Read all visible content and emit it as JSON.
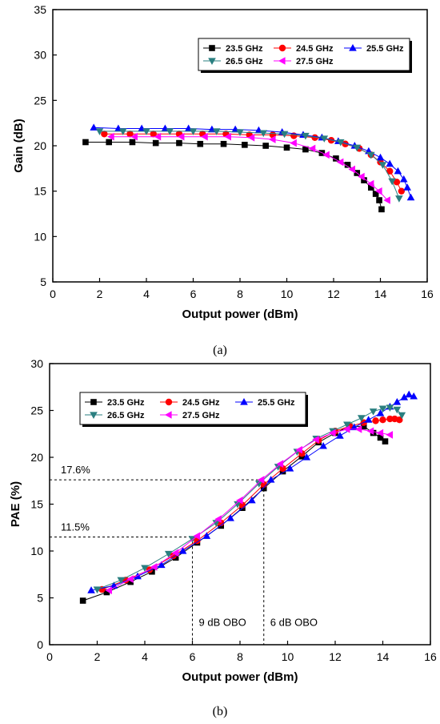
{
  "chart_data": [
    {
      "type": "line",
      "caption": "(a)",
      "xlabel": "Output power (dBm)",
      "ylabel": "Gain (dB)",
      "xlim": [
        0,
        16
      ],
      "ylim": [
        5,
        35
      ],
      "xticks": [
        0,
        2,
        4,
        6,
        8,
        10,
        12,
        14,
        16
      ],
      "yticks": [
        5,
        10,
        15,
        20,
        25,
        30,
        35
      ],
      "legend": "top-right",
      "series": [
        {
          "name": "23.5 GHz",
          "marker": "square",
          "color": "#000000",
          "x": [
            1.4,
            2.4,
            3.4,
            4.4,
            5.4,
            6.3,
            7.3,
            8.2,
            9.1,
            10.0,
            10.8,
            11.5,
            12.1,
            12.6,
            13.0,
            13.3,
            13.6,
            13.8,
            13.95,
            14.05
          ],
          "y": [
            20.4,
            20.4,
            20.4,
            20.3,
            20.3,
            20.2,
            20.2,
            20.1,
            20.0,
            19.8,
            19.6,
            19.2,
            18.6,
            17.9,
            17.0,
            16.2,
            15.4,
            14.7,
            14.0,
            13.0
          ]
        },
        {
          "name": "24.5 GHz",
          "marker": "circle",
          "color": "#ff0000",
          "x": [
            2.2,
            3.3,
            4.3,
            5.4,
            6.4,
            7.4,
            8.4,
            9.4,
            10.3,
            11.2,
            11.9,
            12.5,
            13.1,
            13.6,
            14.0,
            14.4,
            14.7,
            14.9
          ],
          "y": [
            21.3,
            21.3,
            21.3,
            21.3,
            21.3,
            21.3,
            21.2,
            21.2,
            21.1,
            20.9,
            20.6,
            20.2,
            19.7,
            19.0,
            18.2,
            17.2,
            16.0,
            15.0
          ]
        },
        {
          "name": "25.5 GHz",
          "marker": "triangle-up",
          "color": "#0000ff",
          "x": [
            1.75,
            2.8,
            3.8,
            4.8,
            5.8,
            6.8,
            7.8,
            8.8,
            9.8,
            10.7,
            11.5,
            12.2,
            12.9,
            13.5,
            14.0,
            14.4,
            14.75,
            15.0,
            15.15,
            15.3
          ],
          "y": [
            22.0,
            21.9,
            21.9,
            21.9,
            21.9,
            21.8,
            21.8,
            21.7,
            21.5,
            21.2,
            20.9,
            20.5,
            20.0,
            19.4,
            18.7,
            18.0,
            17.2,
            16.3,
            15.4,
            14.3
          ]
        },
        {
          "name": "26.5 GHz",
          "marker": "triangle-down",
          "color": "#2a7f80",
          "x": [
            2.0,
            3.0,
            4.0,
            5.0,
            6.0,
            7.0,
            8.0,
            9.0,
            9.9,
            10.8,
            11.6,
            12.3,
            13.0,
            13.6,
            14.1,
            14.5,
            14.8
          ],
          "y": [
            21.6,
            21.6,
            21.6,
            21.6,
            21.6,
            21.6,
            21.5,
            21.4,
            21.3,
            21.1,
            20.8,
            20.4,
            19.8,
            19.0,
            17.9,
            16.1,
            14.2
          ]
        },
        {
          "name": "27.5 GHz",
          "marker": "triangle-left",
          "color": "#ff00ff",
          "x": [
            2.5,
            3.5,
            4.5,
            5.5,
            6.5,
            7.5,
            8.5,
            9.4,
            10.3,
            11.1,
            11.7,
            12.3,
            12.8,
            13.2,
            13.6,
            13.95,
            14.3
          ],
          "y": [
            21.0,
            21.0,
            21.0,
            21.0,
            21.0,
            21.0,
            20.9,
            20.7,
            20.3,
            19.7,
            19.0,
            18.2,
            17.4,
            16.6,
            15.8,
            15.0,
            14.0
          ]
        }
      ]
    },
    {
      "type": "line",
      "caption": "(b)",
      "xlabel": "Output power (dBm)",
      "ylabel": "PAE (%)",
      "xlim": [
        0,
        16
      ],
      "ylim": [
        0,
        30
      ],
      "xticks": [
        0,
        2,
        4,
        6,
        8,
        10,
        12,
        14,
        16
      ],
      "yticks": [
        0,
        5,
        10,
        15,
        20,
        25,
        30
      ],
      "legend": "top-left",
      "annotations": [
        {
          "text": "17.6%",
          "x": 9.0,
          "y": 17.6
        },
        {
          "text": "11.5%",
          "x": 6.0,
          "y": 11.5
        },
        {
          "text": "9 dB OBO",
          "x": 6.0
        },
        {
          "text": "6 dB OBO",
          "x": 9.0
        }
      ],
      "series": [
        {
          "name": "23.5 GHz",
          "marker": "square",
          "color": "#000000",
          "x": [
            1.4,
            2.4,
            3.4,
            4.3,
            5.3,
            6.2,
            7.2,
            8.1,
            9.0,
            9.8,
            10.6,
            11.3,
            12.0,
            12.6,
            13.2,
            13.6,
            13.9,
            14.1
          ],
          "y": [
            4.7,
            5.6,
            6.7,
            7.8,
            9.3,
            10.9,
            12.7,
            14.6,
            16.7,
            18.5,
            20.1,
            21.6,
            22.6,
            23.3,
            23.3,
            22.6,
            22.1,
            21.7
          ]
        },
        {
          "name": "24.5 GHz",
          "marker": "circle",
          "color": "#ff0000",
          "x": [
            2.2,
            3.2,
            4.2,
            5.2,
            6.2,
            7.2,
            8.1,
            9.0,
            9.8,
            10.6,
            11.3,
            12.0,
            12.6,
            13.2,
            13.7,
            14.0,
            14.3,
            14.5,
            14.7
          ],
          "y": [
            5.9,
            6.9,
            8.0,
            9.5,
            11.1,
            13.0,
            14.9,
            17.1,
            18.8,
            20.4,
            21.8,
            22.8,
            23.3,
            23.7,
            23.9,
            24.0,
            24.1,
            24.1,
            24.0
          ]
        },
        {
          "name": "25.5 GHz",
          "marker": "triangle-up",
          "color": "#0000ff",
          "x": [
            1.75,
            2.7,
            3.7,
            4.7,
            5.6,
            6.6,
            7.6,
            8.5,
            9.3,
            10.1,
            10.8,
            11.5,
            12.2,
            12.8,
            13.4,
            13.9,
            14.3,
            14.6,
            14.9,
            15.1,
            15.3
          ],
          "y": [
            5.8,
            6.3,
            7.3,
            8.5,
            10.0,
            11.6,
            13.5,
            15.4,
            17.6,
            18.8,
            20.0,
            21.2,
            22.3,
            23.2,
            24.0,
            24.7,
            25.4,
            25.9,
            26.4,
            26.7,
            26.5
          ]
        },
        {
          "name": "26.5 GHz",
          "marker": "triangle-down",
          "color": "#2a7f80",
          "x": [
            2.0,
            3.0,
            4.0,
            5.0,
            6.0,
            7.0,
            7.9,
            8.8,
            9.6,
            10.4,
            11.2,
            11.9,
            12.5,
            13.1,
            13.6,
            14.0,
            14.3,
            14.6,
            14.8
          ],
          "y": [
            5.9,
            6.9,
            8.2,
            9.7,
            11.3,
            13.0,
            15.0,
            17.2,
            19.0,
            20.6,
            22.0,
            22.8,
            23.5,
            24.2,
            24.9,
            25.2,
            25.3,
            25.1,
            24.5
          ]
        },
        {
          "name": "27.5 GHz",
          "marker": "triangle-left",
          "color": "#ff00ff",
          "x": [
            2.5,
            3.4,
            4.4,
            5.3,
            6.2,
            7.1,
            8.0,
            8.9,
            9.7,
            10.5,
            11.2,
            11.9,
            12.5,
            13.0,
            13.5,
            13.9,
            14.3
          ],
          "y": [
            5.8,
            7.0,
            8.3,
            9.8,
            11.6,
            13.4,
            15.4,
            17.6,
            19.3,
            20.8,
            21.9,
            22.6,
            23.0,
            23.0,
            22.8,
            22.6,
            22.4
          ]
        }
      ]
    }
  ]
}
